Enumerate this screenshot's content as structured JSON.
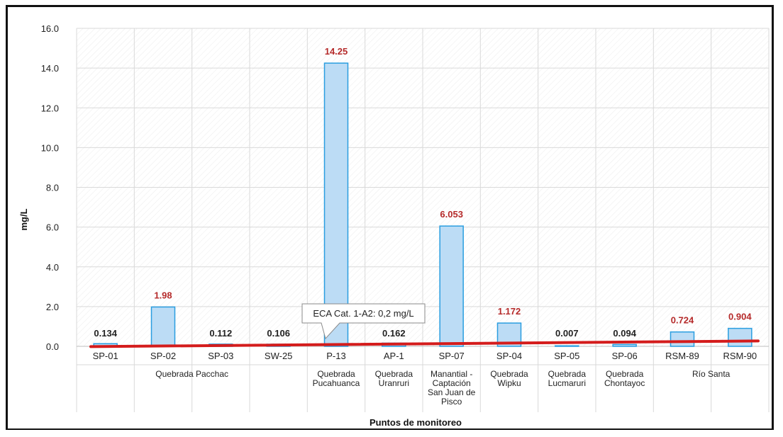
{
  "chart_data": {
    "type": "bar",
    "ylabel": "mg/L",
    "xlabel": "Puntos de monitoreo",
    "ylim": [
      0,
      16
    ],
    "yticks": [
      "0.0",
      "2.0",
      "4.0",
      "6.0",
      "8.0",
      "10.0",
      "12.0",
      "14.0",
      "16.0"
    ],
    "grid": true,
    "categories": [
      "SP-01",
      "SP-02",
      "SP-03",
      "SW-25",
      "P-13",
      "AP-1",
      "SP-07",
      "SP-04",
      "SP-05",
      "SP-06",
      "RSM-89",
      "RSM-90"
    ],
    "values": [
      0.134,
      1.98,
      0.112,
      0.106,
      14.25,
      0.162,
      6.053,
      1.172,
      0.007,
      0.094,
      0.724,
      0.904
    ],
    "value_labels": [
      "0.134",
      "1.98",
      "0.112",
      "0.106",
      "14.25",
      "0.162",
      "6.053",
      "1.172",
      "0.007",
      "0.094",
      "0.724",
      "0.904"
    ],
    "groups": [
      {
        "lines": [
          "Quebrada Pacchac"
        ],
        "span": [
          0,
          3
        ]
      },
      {
        "lines": [
          "Quebrada",
          "Pucahuanca"
        ],
        "span": [
          4,
          4
        ]
      },
      {
        "lines": [
          "Quebrada",
          "Uranruri"
        ],
        "span": [
          5,
          5
        ]
      },
      {
        "lines": [
          "Manantial -",
          "Captación",
          "San Juan de",
          "Pisco"
        ],
        "span": [
          6,
          6
        ]
      },
      {
        "lines": [
          "Quebrada",
          "Wipku"
        ],
        "span": [
          7,
          7
        ]
      },
      {
        "lines": [
          "Quebrada",
          "Lucmaruri"
        ],
        "span": [
          8,
          8
        ]
      },
      {
        "lines": [
          "Quebrada",
          "Chontayoc"
        ],
        "span": [
          9,
          9
        ]
      },
      {
        "lines": [
          "Río Santa"
        ],
        "span": [
          10,
          11
        ]
      }
    ],
    "threshold": {
      "value": 0.2,
      "label": "ECA Cat. 1-A2: 0,2 mg/L"
    },
    "colors": {
      "bar_fill": "#bcdcf5",
      "bar_stroke": "#2a9ee0",
      "threshold_line": "#d41c1c",
      "exceed_label": "#b52a2a",
      "normal_label": "#222222",
      "grid": "#d9d9d9"
    }
  }
}
